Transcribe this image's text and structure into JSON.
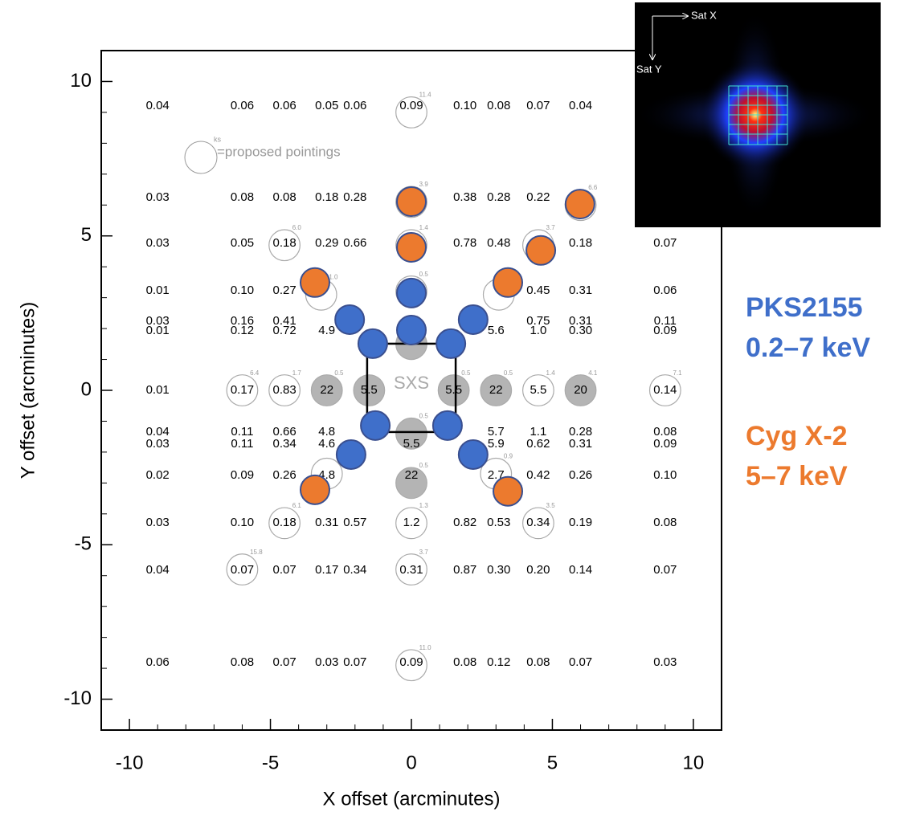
{
  "chart_data": {
    "type": "scatter",
    "xlabel": "X offset (arcminutes)",
    "ylabel": "Y offset (arcminutes)",
    "xlim": [
      -11,
      11
    ],
    "ylim": [
      -11,
      11
    ],
    "xticks": [
      -10,
      -5,
      0,
      5,
      10
    ],
    "yticks": [
      -10,
      -5,
      0,
      5,
      10
    ],
    "xminorticks": [
      -9,
      -8,
      -7,
      -6,
      -4,
      -3,
      -2,
      -1,
      1,
      2,
      3,
      4,
      6,
      7,
      8,
      9
    ],
    "yminorticks": [
      -9,
      -8,
      -7,
      -6,
      -4,
      -3,
      -2,
      -1,
      1,
      2,
      3,
      4,
      6,
      7,
      8,
      9
    ],
    "count_rates": {
      "x": [
        -9,
        -6,
        -4.5,
        -3,
        -2,
        0,
        1.9,
        3.1,
        4.5,
        6,
        -9,
        -6,
        -4.5,
        -3,
        -2,
        1.9,
        3.1,
        4.5,
        -9,
        -6,
        -4.5,
        -3,
        -2,
        1.9,
        3.1,
        6,
        9,
        -9,
        -6,
        -4.5,
        4.5,
        6,
        9,
        -9,
        -6,
        -4.5,
        4.5,
        6,
        9,
        -9,
        -6,
        -4.5,
        -3,
        3,
        4.5,
        6,
        9,
        -9,
        -6,
        -4.5,
        -3,
        -1.5,
        1.5,
        3,
        4.5,
        6,
        9,
        -9,
        -6,
        -4.5,
        -3,
        3,
        4.5,
        6,
        9,
        -9,
        -6,
        -4.5,
        -3,
        0,
        3,
        4.5,
        6,
        9,
        -9,
        -6,
        -4.5,
        -3,
        0,
        3,
        4.5,
        6,
        9,
        -9,
        -6,
        -4.5,
        -3,
        -2,
        0,
        1.9,
        3.1,
        4.5,
        6,
        9,
        -9,
        -6,
        -4.5,
        -3,
        -2,
        0,
        1.9,
        3.1,
        4.5,
        6,
        9,
        -9,
        -6,
        -4.5,
        -3,
        -2,
        0,
        1.9,
        3.1,
        4.5,
        6,
        9
      ],
      "y": [
        9.2,
        9.2,
        9.2,
        9.2,
        9.2,
        9.2,
        9.2,
        9.2,
        9.2,
        9.2,
        6.24,
        6.24,
        6.24,
        6.24,
        6.24,
        6.24,
        6.24,
        6.24,
        4.76,
        4.76,
        4.76,
        4.76,
        4.76,
        4.76,
        4.76,
        4.76,
        4.76,
        3.22,
        3.22,
        3.22,
        3.22,
        3.22,
        3.22,
        2.24,
        2.24,
        2.24,
        2.24,
        2.24,
        2.24,
        1.92,
        1.92,
        1.92,
        1.92,
        1.92,
        1.92,
        1.92,
        1.92,
        0,
        0,
        0,
        0,
        0,
        0,
        0,
        0,
        0,
        0,
        -1.35,
        -1.35,
        -1.35,
        -1.35,
        -1.35,
        -1.35,
        -1.35,
        -1.35,
        -1.74,
        -1.74,
        -1.74,
        -1.74,
        -1.74,
        -1.74,
        -1.74,
        -1.74,
        -1.74,
        -2.76,
        -2.76,
        -2.76,
        -2.76,
        -2.76,
        -2.76,
        -2.76,
        -2.76,
        -2.76,
        -4.29,
        -4.29,
        -4.29,
        -4.29,
        -4.29,
        -4.29,
        -4.29,
        -4.29,
        -4.29,
        -4.29,
        -4.29,
        -5.83,
        -5.83,
        -5.83,
        -5.83,
        -5.83,
        -5.83,
        -5.83,
        -5.83,
        -5.83,
        -5.83,
        -5.83,
        -8.82,
        -8.82,
        -8.82,
        -8.82,
        -8.82,
        -8.82,
        -8.82,
        -8.82,
        -8.82,
        -8.82,
        -8.82
      ],
      "values": [
        0.04,
        0.06,
        0.06,
        0.05,
        0.06,
        0.09,
        0.1,
        0.08,
        0.07,
        0.04,
        0.03,
        0.08,
        0.08,
        0.18,
        0.28,
        0.38,
        0.28,
        0.22,
        0.03,
        0.05,
        0.18,
        0.29,
        0.66,
        0.78,
        0.48,
        0.18,
        0.07,
        0.01,
        0.1,
        0.27,
        0.45,
        0.31,
        0.06,
        0.03,
        0.16,
        0.41,
        0.75,
        0.31,
        0.11,
        0.01,
        0.12,
        0.72,
        4.9,
        5.6,
        1.0,
        0.3,
        0.09,
        0.01,
        0.17,
        0.83,
        22,
        5.5,
        5.5,
        22,
        5.5,
        20,
        0.14,
        0.04,
        0.11,
        0.66,
        4.8,
        5.7,
        1.1,
        0.28,
        0.08,
        0.03,
        0.11,
        0.34,
        4.6,
        5.5,
        5.9,
        0.62,
        0.31,
        0.09,
        0.02,
        0.09,
        0.26,
        4.8,
        22,
        2.7,
        0.42,
        0.26,
        0.1,
        0.03,
        0.1,
        0.18,
        0.31,
        0.57,
        1.2,
        0.82,
        0.53,
        0.34,
        0.19,
        0.08,
        0.04,
        0.07,
        0.07,
        0.17,
        0.34,
        0.31,
        0.87,
        0.3,
        0.2,
        0.14,
        0.07,
        0.06,
        0.08,
        0.07,
        0.03,
        0.07,
        0.09,
        0.08,
        0.12,
        0.08,
        0.07,
        0.03
      ],
      "value_labels": [
        "0.04",
        "0.06",
        "0.06",
        "0.05",
        "0.06",
        "0.09",
        "0.10",
        "0.08",
        "0.07",
        "0.04",
        "0.03",
        "0.08",
        "0.08",
        "0.18",
        "0.28",
        "0.38",
        "0.28",
        "0.22",
        "0.03",
        "0.05",
        "0.18",
        "0.29",
        "0.66",
        "0.78",
        "0.48",
        "0.18",
        "0.07",
        "0.01",
        "0.10",
        "0.27",
        "0.45",
        "0.31",
        "0.06",
        "0.03",
        "0.16",
        "0.41",
        "0.75",
        "0.31",
        "0.11",
        "0.01",
        "0.12",
        "0.72",
        "4.9",
        "5.6",
        "1.0",
        "0.30",
        "0.09",
        "0.01",
        "0.17",
        "0.83",
        "22",
        "5.5",
        "5.5",
        "22",
        "5.5",
        "20",
        "0.14",
        "0.04",
        "0.11",
        "0.66",
        "4.8",
        "5.7",
        "1.1",
        "0.28",
        "0.08",
        "0.03",
        "0.11",
        "0.34",
        "4.6",
        "5.5",
        "5.9",
        "0.62",
        "0.31",
        "0.09",
        "0.02",
        "0.09",
        "0.26",
        "4.8",
        "22",
        "2.7",
        "0.42",
        "0.26",
        "0.10",
        "0.03",
        "0.10",
        "0.18",
        "0.31",
        "0.57",
        "1.2",
        "0.82",
        "0.53",
        "0.34",
        "0.19",
        "0.08",
        "0.04",
        "0.07",
        "0.07",
        "0.17",
        "0.34",
        "0.31",
        "0.87",
        "0.30",
        "0.20",
        "0.14",
        "0.07",
        "0.06",
        "0.08",
        "0.07",
        "0.03",
        "0.07",
        "0.09",
        "0.08",
        "0.12",
        "0.08",
        "0.07",
        "0.03"
      ]
    },
    "pointings": {
      "legend": "=proposed pointings",
      "unit": "ks",
      "x": [
        0,
        0,
        6,
        -4.5,
        0,
        4.5,
        -3.2,
        0,
        3.1,
        -6,
        -4.5,
        -3,
        -1.5,
        1.5,
        3,
        4.5,
        6,
        9,
        0,
        0,
        0,
        -3,
        3,
        -4.5,
        0,
        4.5,
        -6,
        0,
        0
      ],
      "y": [
        9.0,
        6.1,
        6.0,
        4.7,
        4.7,
        4.7,
        3.1,
        3.2,
        3.1,
        0,
        0,
        0,
        0,
        0,
        0,
        0,
        0,
        0,
        1.5,
        -1.4,
        -3.0,
        -2.7,
        -2.7,
        -4.3,
        -4.3,
        -4.3,
        -5.8,
        -5.8,
        -8.9
      ],
      "values": [
        11.4,
        3.9,
        6.6,
        6.0,
        1.4,
        3.7,
        1.0,
        0.5,
        null,
        6.4,
        1.7,
        0.5,
        null,
        0.5,
        0.5,
        1.4,
        4.1,
        7.1,
        null,
        0.5,
        0.5,
        null,
        0.9,
        6.1,
        1.3,
        3.5,
        15.8,
        3.7,
        11.0
      ],
      "value_labels": [
        "11.4",
        "3.9",
        "6.6",
        "6.0",
        "1.4",
        "3.7",
        "1.0",
        "0.5",
        null,
        "6.4",
        "1.7",
        "0.5",
        null,
        "0.5",
        "0.5",
        "1.4",
        "4.1",
        "7.1",
        null,
        "0.5",
        "0.5",
        null,
        "0.9",
        "6.1",
        "1.3",
        "3.5",
        "15.8",
        "3.7",
        "11.0"
      ],
      "filled": [
        false,
        false,
        false,
        false,
        false,
        false,
        false,
        false,
        false,
        false,
        false,
        true,
        true,
        true,
        true,
        false,
        true,
        false,
        true,
        true,
        true,
        false,
        false,
        false,
        false,
        false,
        false,
        false,
        false
      ]
    },
    "fov": {
      "label": "SXS",
      "x": [
        -1.57,
        1.57
      ],
      "y": [
        -1.35,
        1.51
      ]
    },
    "series": [
      {
        "name": "PKS2155",
        "sublabel": "0.2–7 keV",
        "color": "#3f6fca",
        "x": [
          0,
          0,
          -2.19,
          2.19,
          -1.37,
          1.4,
          -1.28,
          1.28,
          -2.14,
          2.19
        ],
        "y": [
          3.15,
          1.95,
          2.29,
          2.29,
          1.51,
          1.51,
          -1.14,
          -1.14,
          -2.08,
          -2.08
        ]
      },
      {
        "name": "Cyg X-2",
        "sublabel": "5–7 keV",
        "color": "#ec7a2e",
        "x": [
          0,
          0,
          -3.42,
          3.42,
          4.59,
          5.98,
          -3.42,
          3.42
        ],
        "y": [
          6.11,
          4.63,
          3.49,
          3.49,
          4.53,
          6.03,
          -3.22,
          -3.27
        ]
      }
    ],
    "inset": {
      "x_label": "Sat X",
      "y_label": "Sat Y"
    }
  }
}
